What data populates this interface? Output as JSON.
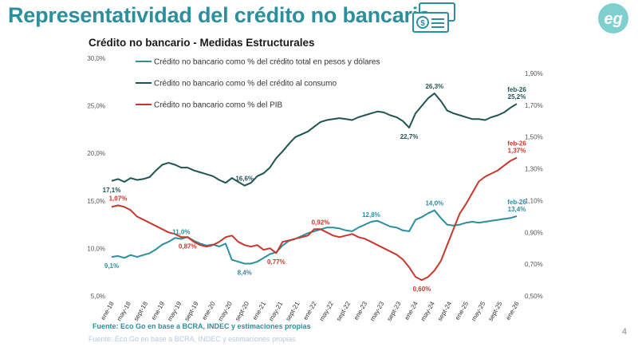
{
  "slide": {
    "title": "Representatividad del crédito no bancario",
    "page_number": "4",
    "logo_text": "eg",
    "colors": {
      "accent": "#2b8f9d",
      "series_total": "#2b8f9d",
      "series_consumo": "#1f5452",
      "series_pib": "#c8372d"
    }
  },
  "chart_data": {
    "type": "line",
    "title": "Crédito no bancario - Medidas Estructurales",
    "source": "Fuente: Eco Go en base a BCRA, INDEC y estimaciones propias",
    "x_tick_labels": [
      "ene-18",
      "may-18",
      "sept-18",
      "ene-19",
      "may-19",
      "sept-19",
      "ene-20",
      "may-20",
      "sept-20",
      "ene-21",
      "may-21",
      "sept-21",
      "ene-22",
      "may-22",
      "sept-22",
      "ene-23",
      "may-23",
      "sept-23",
      "ene-24",
      "may-24",
      "sept-24",
      "ene-25",
      "may-25",
      "sept-25",
      "ene-26"
    ],
    "left_axis": {
      "ticks": [
        "30,0%",
        "25,0%",
        "20,0%",
        "15,0%",
        "10,0%",
        "5,0%"
      ],
      "range": [
        5,
        30
      ]
    },
    "right_axis": {
      "ticks": [
        "1,90%",
        "1,70%",
        "1,50%",
        "1,30%",
        "1,10%",
        "0,90%",
        "0,70%",
        "0,50%"
      ],
      "range": [
        0.5,
        1.9
      ]
    },
    "legend": [
      {
        "label": "Crédito no bancario como % del crédito total en pesos y dólares",
        "color": "#2b8f9d"
      },
      {
        "label": "Crédito no bancario como % del crédito al consumo",
        "color": "#1f5452"
      },
      {
        "label": "Crédito no bancario como % del PIB",
        "color": "#c8372d"
      }
    ],
    "series": [
      {
        "name": "Crédito no bancario como % del crédito total en pesos y dólares",
        "axis": "left",
        "color": "#2b8f9d",
        "points": [
          [
            0,
            9.1
          ],
          [
            1,
            9.2
          ],
          [
            2,
            9.0
          ],
          [
            3,
            9.3
          ],
          [
            4,
            9.1
          ],
          [
            5,
            9.3
          ],
          [
            6,
            9.5
          ],
          [
            7,
            9.9
          ],
          [
            8,
            10.4
          ],
          [
            9,
            10.7
          ],
          [
            10,
            11.1
          ],
          [
            11,
            11.0
          ],
          [
            12,
            11.2
          ],
          [
            13,
            10.8
          ],
          [
            14,
            10.5
          ],
          [
            15,
            10.3
          ],
          [
            16,
            10.4
          ],
          [
            17,
            10.2
          ],
          [
            18,
            10.5
          ],
          [
            19,
            8.8
          ],
          [
            20,
            8.6
          ],
          [
            21,
            8.4
          ],
          [
            22,
            8.4
          ],
          [
            23,
            8.6
          ],
          [
            24,
            9.0
          ],
          [
            25,
            9.4
          ],
          [
            26,
            9.6
          ],
          [
            27,
            10.3
          ],
          [
            28,
            10.8
          ],
          [
            29,
            11.0
          ],
          [
            30,
            11.3
          ],
          [
            31,
            11.6
          ],
          [
            32,
            11.8
          ],
          [
            33,
            12.0
          ],
          [
            34,
            12.2
          ],
          [
            35,
            12.2
          ],
          [
            36,
            12.1
          ],
          [
            37,
            11.9
          ],
          [
            38,
            11.8
          ],
          [
            39,
            12.2
          ],
          [
            40,
            12.5
          ],
          [
            41,
            12.8
          ],
          [
            42,
            12.9
          ],
          [
            43,
            12.6
          ],
          [
            44,
            12.3
          ],
          [
            45,
            12.2
          ],
          [
            46,
            11.9
          ],
          [
            47,
            11.8
          ],
          [
            48,
            13.0
          ],
          [
            49,
            13.3
          ],
          [
            50,
            13.7
          ],
          [
            51,
            14.0
          ],
          [
            52,
            13.2
          ],
          [
            53,
            12.5
          ],
          [
            54,
            12.4
          ],
          [
            55,
            12.5
          ],
          [
            56,
            12.7
          ],
          [
            57,
            12.8
          ],
          [
            58,
            12.7
          ],
          [
            59,
            12.8
          ],
          [
            60,
            12.9
          ],
          [
            61,
            13.0
          ],
          [
            62,
            13.1
          ],
          [
            63,
            13.2
          ],
          [
            64,
            13.4
          ]
        ]
      },
      {
        "name": "Crédito no bancario como % del crédito al consumo",
        "axis": "left",
        "color": "#1f5452",
        "points": [
          [
            0,
            17.1
          ],
          [
            1,
            17.3
          ],
          [
            2,
            17.0
          ],
          [
            3,
            17.4
          ],
          [
            4,
            17.2
          ],
          [
            5,
            17.3
          ],
          [
            6,
            17.5
          ],
          [
            7,
            18.2
          ],
          [
            8,
            18.8
          ],
          [
            9,
            19.0
          ],
          [
            10,
            18.8
          ],
          [
            11,
            18.5
          ],
          [
            12,
            18.5
          ],
          [
            13,
            18.2
          ],
          [
            14,
            18.0
          ],
          [
            15,
            17.8
          ],
          [
            16,
            17.6
          ],
          [
            17,
            17.2
          ],
          [
            18,
            16.9
          ],
          [
            19,
            17.4
          ],
          [
            20,
            17.0
          ],
          [
            21,
            16.6
          ],
          [
            22,
            16.9
          ],
          [
            23,
            17.6
          ],
          [
            24,
            17.9
          ],
          [
            25,
            18.5
          ],
          [
            26,
            19.5
          ],
          [
            27,
            20.2
          ],
          [
            28,
            21.0
          ],
          [
            29,
            21.7
          ],
          [
            30,
            22.0
          ],
          [
            31,
            22.3
          ],
          [
            32,
            22.8
          ],
          [
            33,
            23.3
          ],
          [
            34,
            23.5
          ],
          [
            35,
            23.6
          ],
          [
            36,
            23.7
          ],
          [
            37,
            23.6
          ],
          [
            38,
            23.5
          ],
          [
            39,
            23.8
          ],
          [
            40,
            24.0
          ],
          [
            41,
            24.2
          ],
          [
            42,
            24.4
          ],
          [
            43,
            24.3
          ],
          [
            44,
            24.0
          ],
          [
            45,
            23.8
          ],
          [
            46,
            23.4
          ],
          [
            47,
            22.7
          ],
          [
            48,
            24.2
          ],
          [
            49,
            25.0
          ],
          [
            50,
            25.8
          ],
          [
            51,
            26.3
          ],
          [
            52,
            25.5
          ],
          [
            53,
            24.5
          ],
          [
            54,
            24.2
          ],
          [
            55,
            24.0
          ],
          [
            56,
            23.8
          ],
          [
            57,
            23.6
          ],
          [
            58,
            23.6
          ],
          [
            59,
            23.5
          ],
          [
            60,
            23.8
          ],
          [
            61,
            24.0
          ],
          [
            62,
            24.3
          ],
          [
            63,
            24.8
          ],
          [
            64,
            25.2
          ]
        ]
      },
      {
        "name": "Crédito no bancario como % del PIB",
        "axis": "right",
        "color": "#c8372d",
        "points": [
          [
            0,
            1.06
          ],
          [
            1,
            1.07
          ],
          [
            2,
            1.06
          ],
          [
            3,
            1.04
          ],
          [
            4,
            1.0
          ],
          [
            5,
            0.98
          ],
          [
            6,
            0.96
          ],
          [
            7,
            0.94
          ],
          [
            8,
            0.92
          ],
          [
            9,
            0.9
          ],
          [
            10,
            0.89
          ],
          [
            11,
            0.87
          ],
          [
            12,
            0.87
          ],
          [
            13,
            0.84
          ],
          [
            14,
            0.82
          ],
          [
            15,
            0.81
          ],
          [
            16,
            0.82
          ],
          [
            17,
            0.84
          ],
          [
            18,
            0.87
          ],
          [
            19,
            0.88
          ],
          [
            20,
            0.84
          ],
          [
            21,
            0.82
          ],
          [
            22,
            0.81
          ],
          [
            23,
            0.82
          ],
          [
            24,
            0.79
          ],
          [
            25,
            0.8
          ],
          [
            26,
            0.77
          ],
          [
            27,
            0.84
          ],
          [
            28,
            0.85
          ],
          [
            29,
            0.86
          ],
          [
            30,
            0.87
          ],
          [
            31,
            0.88
          ],
          [
            32,
            0.92
          ],
          [
            33,
            0.92
          ],
          [
            34,
            0.9
          ],
          [
            35,
            0.88
          ],
          [
            36,
            0.87
          ],
          [
            37,
            0.88
          ],
          [
            38,
            0.89
          ],
          [
            39,
            0.87
          ],
          [
            40,
            0.86
          ],
          [
            41,
            0.84
          ],
          [
            42,
            0.82
          ],
          [
            43,
            0.8
          ],
          [
            44,
            0.78
          ],
          [
            45,
            0.76
          ],
          [
            46,
            0.73
          ],
          [
            47,
            0.68
          ],
          [
            48,
            0.62
          ],
          [
            49,
            0.6
          ],
          [
            50,
            0.62
          ],
          [
            51,
            0.66
          ],
          [
            52,
            0.72
          ],
          [
            53,
            0.82
          ],
          [
            54,
            0.92
          ],
          [
            55,
            1.02
          ],
          [
            56,
            1.08
          ],
          [
            57,
            1.15
          ],
          [
            58,
            1.22
          ],
          [
            59,
            1.25
          ],
          [
            60,
            1.27
          ],
          [
            61,
            1.29
          ],
          [
            62,
            1.32
          ],
          [
            63,
            1.35
          ],
          [
            64,
            1.37
          ]
        ]
      }
    ],
    "annotations": [
      {
        "series": 0,
        "x": 0,
        "text": "9,1%",
        "pos": "below"
      },
      {
        "series": 0,
        "x": 11,
        "text": "11,0%",
        "pos": "above"
      },
      {
        "series": 0,
        "x": 21,
        "text": "8,4%",
        "pos": "below"
      },
      {
        "series": 0,
        "x": 41,
        "text": "12,8%",
        "pos": "above"
      },
      {
        "series": 0,
        "x": 51,
        "text": "14,0%",
        "pos": "above"
      },
      {
        "series": 0,
        "x": 64,
        "text": "feb-26",
        "pos": "above2"
      },
      {
        "series": 0,
        "x": 64,
        "text": "13,4%",
        "pos": "above"
      },
      {
        "series": 1,
        "x": 0,
        "text": "17,1%",
        "pos": "below"
      },
      {
        "series": 1,
        "x": 21,
        "text": "16,6%",
        "pos": "above"
      },
      {
        "series": 1,
        "x": 47,
        "text": "22,7%",
        "pos": "below"
      },
      {
        "series": 1,
        "x": 51,
        "text": "26,3%",
        "pos": "above"
      },
      {
        "series": 1,
        "x": 64,
        "text": "feb-26",
        "pos": "above2"
      },
      {
        "series": 1,
        "x": 64,
        "text": "25,2%",
        "pos": "above"
      },
      {
        "series": 2,
        "x": 1,
        "text": "1,07%",
        "pos": "above"
      },
      {
        "series": 2,
        "x": 12,
        "text": "0,87%",
        "pos": "below"
      },
      {
        "series": 2,
        "x": 26,
        "text": "0,77%",
        "pos": "below"
      },
      {
        "series": 2,
        "x": 33,
        "text": "0,92%",
        "pos": "above"
      },
      {
        "series": 2,
        "x": 49,
        "text": "0,60%",
        "pos": "below"
      },
      {
        "series": 2,
        "x": 64,
        "text": "feb-26",
        "pos": "above2"
      },
      {
        "series": 2,
        "x": 64,
        "text": "1,37%",
        "pos": "above"
      }
    ]
  }
}
